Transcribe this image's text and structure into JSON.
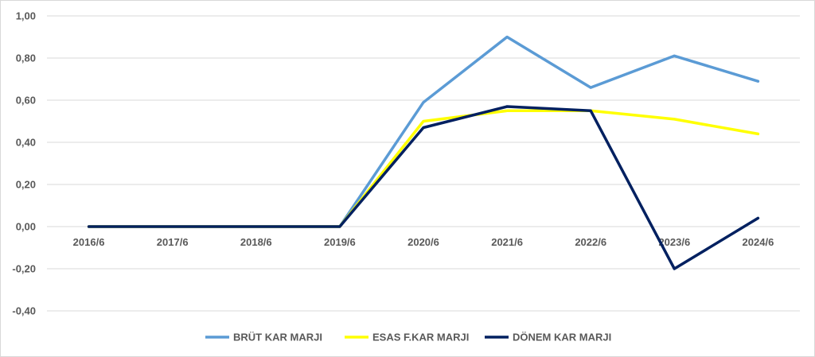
{
  "chart_data": {
    "type": "line",
    "categories": [
      "2016/6",
      "2017/6",
      "2018/6",
      "2019/6",
      "2020/6",
      "2021/6",
      "2022/6",
      "2023/6",
      "2024/6"
    ],
    "ylim": [
      -0.4,
      1.0
    ],
    "yticks": [
      1.0,
      0.8,
      0.6,
      0.4,
      0.2,
      0.0,
      -0.2,
      -0.4
    ],
    "ytick_labels": [
      "1,00",
      "0,80",
      "0,60",
      "0,40",
      "0,20",
      "0,00",
      "-0,20",
      "-0,40"
    ],
    "grid": true,
    "legend_position": "bottom",
    "series": [
      {
        "name": "BRÜT KAR MARJI",
        "color": "#5B9BD5",
        "values": [
          0,
          0,
          0,
          0,
          0.59,
          0.9,
          0.66,
          0.81,
          0.69
        ]
      },
      {
        "name": "ESAS F.KAR MARJI",
        "color": "#FFFF00",
        "values": [
          0,
          0,
          0,
          0,
          0.5,
          0.55,
          0.55,
          0.51,
          0.44
        ]
      },
      {
        "name": "DÖNEM KAR MARJI",
        "color": "#002060",
        "values": [
          0,
          0,
          0,
          0,
          0.47,
          0.57,
          0.55,
          -0.2,
          0.04
        ]
      }
    ]
  }
}
